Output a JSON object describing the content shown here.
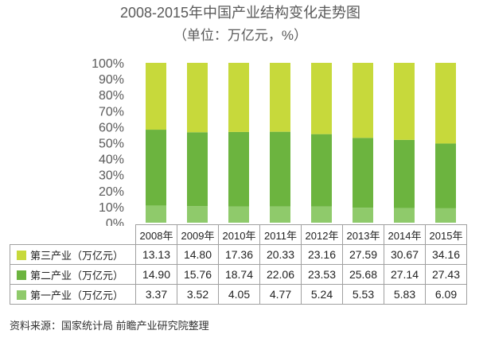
{
  "chart_data": {
    "type": "bar",
    "stacked": true,
    "normalized": "percent",
    "title": "2008-2015年中国产业结构变化走势图",
    "subtitle": "（单位：万亿元，%）",
    "categories": [
      "2008年",
      "2009年",
      "2010年",
      "2011年",
      "2012年",
      "2013年",
      "2014年",
      "2015年"
    ],
    "yticks": [
      "0%",
      "10%",
      "20%",
      "30%",
      "40%",
      "50%",
      "60%",
      "70%",
      "80%",
      "90%",
      "100%"
    ],
    "ylim": [
      0,
      100
    ],
    "legend": "table-left",
    "series": [
      {
        "name": "第三产业（万亿元）",
        "color": "#c7d93b",
        "values": [
          13.13,
          14.8,
          17.36,
          20.33,
          23.16,
          27.59,
          30.67,
          34.16
        ]
      },
      {
        "name": "第二产业（万亿元）",
        "color": "#6cb43f",
        "values": [
          14.9,
          15.76,
          18.74,
          22.06,
          23.53,
          25.68,
          27.14,
          27.43
        ]
      },
      {
        "name": "第一产业（万亿元）",
        "color": "#8fca6b",
        "values": [
          3.37,
          3.52,
          4.05,
          4.77,
          5.24,
          5.53,
          5.83,
          6.09
        ]
      }
    ]
  },
  "source": "资料来源：国家统计局 前瞻产业研究院整理"
}
